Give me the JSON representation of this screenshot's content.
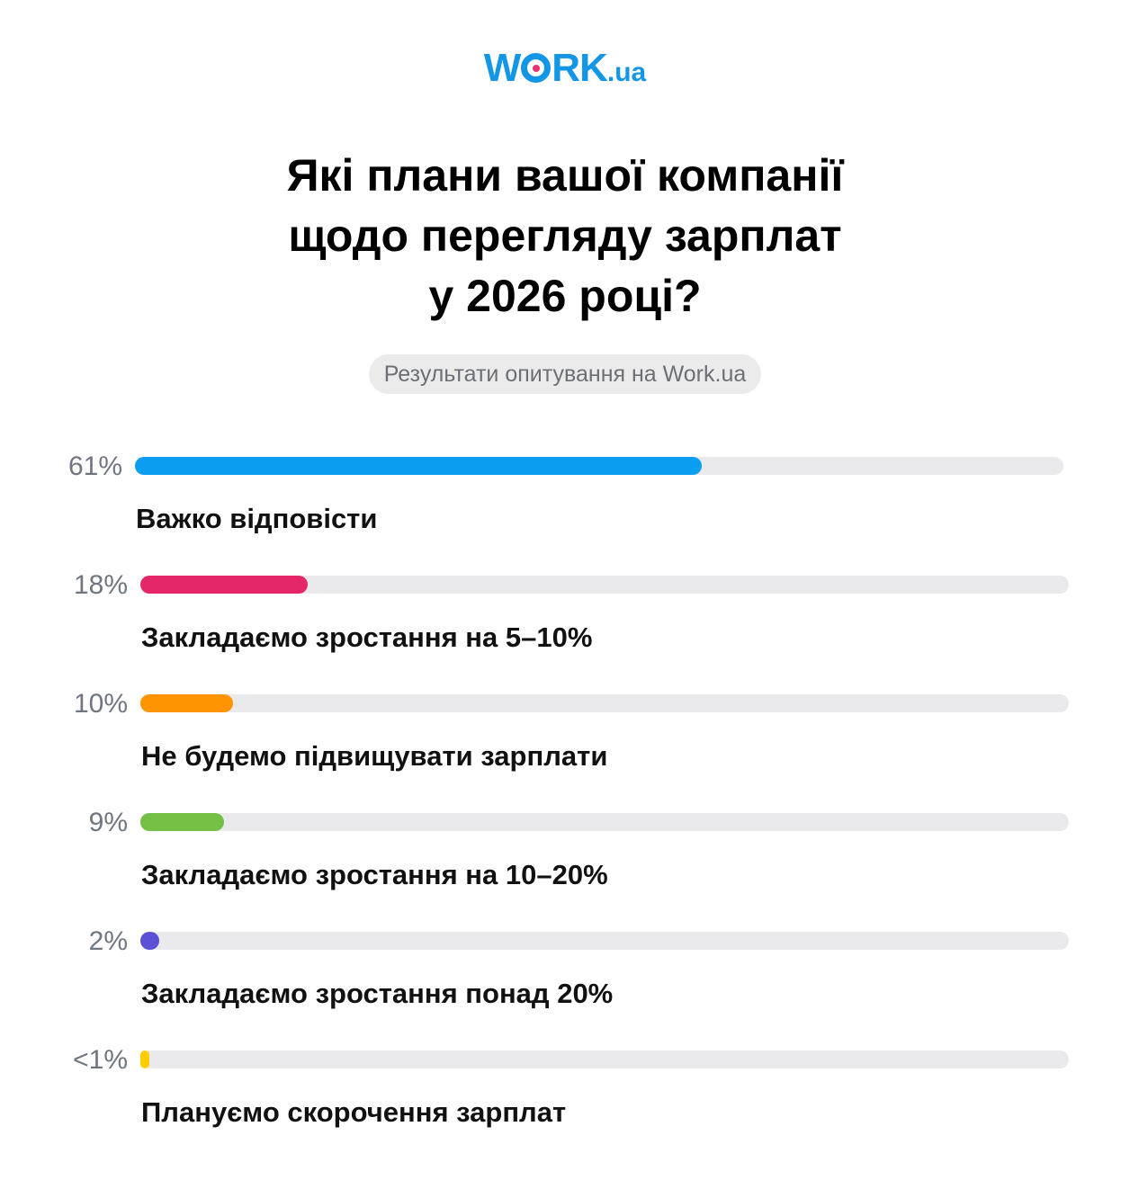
{
  "brand": {
    "logo_main_w": "W",
    "logo_main_rk": "RK",
    "logo_tld": ".ua",
    "color": "#1396e6",
    "dot_color": "#e8336e"
  },
  "chart_data": {
    "type": "bar",
    "orientation": "horizontal",
    "title_lines": [
      "Які плани вашої компанії",
      "щодо перегляду зарплат",
      "у 2026 році?"
    ],
    "subtitle": "Результати опитування на Work.ua",
    "unit": "%",
    "xlim": [
      0,
      100
    ],
    "track_color": "#eaeaec",
    "bars": [
      {
        "label": "Важко відповісти",
        "display": "61%",
        "value": 61,
        "color": "#0b9ef0"
      },
      {
        "label": "Закладаємо зростання на 5–10%",
        "display": "18%",
        "value": 18,
        "color": "#e5276a"
      },
      {
        "label": "Не будемо підвищувати зарплати",
        "display": "10%",
        "value": 10,
        "color": "#ff9403"
      },
      {
        "label": "Закладаємо зростання на 10–20%",
        "display": "9%",
        "value": 9,
        "color": "#73c044"
      },
      {
        "label": "Закладаємо зростання понад 20%",
        "display": "2%",
        "value": 2,
        "color": "#5b50d6"
      },
      {
        "label": "Плануємо скорочення зарплат",
        "display": "<1%",
        "value": 1,
        "color": "#ffcd02"
      }
    ]
  }
}
